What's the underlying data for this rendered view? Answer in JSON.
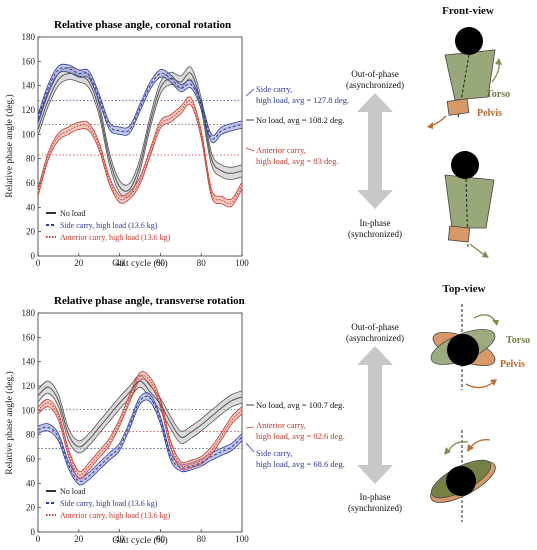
{
  "colors": {
    "no_load": "#555555",
    "no_load_band": "#bdbdbd",
    "side": "#2d3ca0",
    "side_band": "#8f98d2",
    "anterior": "#c8382c",
    "anterior_band": "#ef9f94",
    "torso": "#7f8f55",
    "torso_fill": "#98a878",
    "pelvis": "#c06a30",
    "pelvis_fill": "#d8996a",
    "arrow_gray": "#c8c8c8"
  },
  "legend_labels": [
    "No load",
    "Side carry, high load (13.6 kg)",
    "Anterior carry, high load (13.6 kg)"
  ],
  "chart_data": [
    {
      "type": "line",
      "title": "Relative phase angle, coronal rotation",
      "xlabel": "Gait cycle (%)",
      "ylabel": "Relative phase angle (deg.)",
      "xlim": [
        0,
        100
      ],
      "ylim": [
        0,
        180
      ],
      "xticks": [
        0,
        20,
        40,
        60,
        80,
        100
      ],
      "yticks": [
        0,
        20,
        40,
        60,
        80,
        100,
        120,
        140,
        160,
        180
      ],
      "x": [
        0,
        5,
        10,
        15,
        20,
        25,
        30,
        35,
        40,
        45,
        50,
        55,
        60,
        65,
        70,
        75,
        80,
        85,
        90,
        95,
        100
      ],
      "series": [
        {
          "name": "No load",
          "values": [
            104,
            128,
            145,
            150,
            148,
            143,
            120,
            80,
            57,
            55,
            75,
            110,
            138,
            146,
            143,
            150,
            125,
            80,
            70,
            68,
            70
          ],
          "band": 5
        },
        {
          "name": "Side carry, high load (13.6 kg)",
          "values": [
            113,
            138,
            153,
            154,
            150,
            149,
            130,
            107,
            103,
            104,
            122,
            140,
            150,
            146,
            138,
            141,
            124,
            97,
            103,
            106,
            108
          ],
          "band": 3
        },
        {
          "name": "Anterior carry, high load (13.6 kg)",
          "values": [
            52,
            82,
            98,
            103,
            107,
            106,
            90,
            62,
            47,
            50,
            62,
            85,
            108,
            113,
            120,
            127,
            100,
            52,
            46,
            44,
            58
          ],
          "band": 3
        }
      ],
      "averages": [
        {
          "label": "Side carry,",
          "label2": "high load, avg = 127.8 deg.",
          "value": 127.8
        },
        {
          "label": "No load, avg = 108.2 deg.",
          "label2": "",
          "value": 108.2
        },
        {
          "label": "Anterior carry,",
          "label2": "high load, avg = 83 deg.",
          "value": 83
        }
      ]
    },
    {
      "type": "line",
      "title": "Relative phase angle, transverse rotation",
      "xlabel": "Gait cycle (%)",
      "ylabel": "Relative phase angle (deg.)",
      "xlim": [
        0,
        100
      ],
      "ylim": [
        0,
        180
      ],
      "xticks": [
        0,
        20,
        40,
        60,
        80,
        100
      ],
      "yticks": [
        0,
        20,
        40,
        60,
        80,
        100,
        120,
        140,
        160,
        180
      ],
      "x": [
        0,
        5,
        10,
        15,
        20,
        25,
        30,
        35,
        40,
        45,
        50,
        55,
        60,
        65,
        70,
        75,
        80,
        85,
        90,
        95,
        100
      ],
      "series": [
        {
          "name": "No load",
          "values": [
            112,
            119,
            108,
            80,
            70,
            76,
            86,
            96,
            106,
            115,
            124,
            115,
            105,
            90,
            78,
            82,
            88,
            95,
            102,
            108,
            111
          ],
          "band": 5
        },
        {
          "name": "Side carry, high load (13.6 kg)",
          "values": [
            84,
            86,
            78,
            55,
            42,
            46,
            54,
            62,
            70,
            88,
            108,
            110,
            92,
            62,
            53,
            54,
            57,
            62,
            66,
            70,
            78
          ],
          "band": 3
        },
        {
          "name": "Anterior carry, high load (13.6 kg)",
          "values": [
            100,
            106,
            95,
            65,
            47,
            54,
            64,
            74,
            90,
            110,
            128,
            124,
            106,
            72,
            55,
            56,
            59,
            67,
            79,
            92,
            100
          ],
          "band": 3
        }
      ],
      "averages": [
        {
          "label": "No load, avg = 100.7 deg.",
          "label2": "",
          "value": 100.7
        },
        {
          "label": "Anterior carry,",
          "label2": "high load, avg = 82.6 deg.",
          "value": 82.6
        },
        {
          "label": "Side carry,",
          "label2": "high load, avg = 68.6 deg.",
          "value": 68.6
        }
      ]
    }
  ],
  "diagram": {
    "front_title": "Front-view",
    "top_title": "Top-view",
    "out_of_phase_1": "Out-of-phase",
    "out_of_phase_2": "(asynchronized)",
    "in_phase_1": "In-phase",
    "in_phase_2": "(synchronized)",
    "torso": "Torso",
    "pelvis": "Pelvis"
  }
}
